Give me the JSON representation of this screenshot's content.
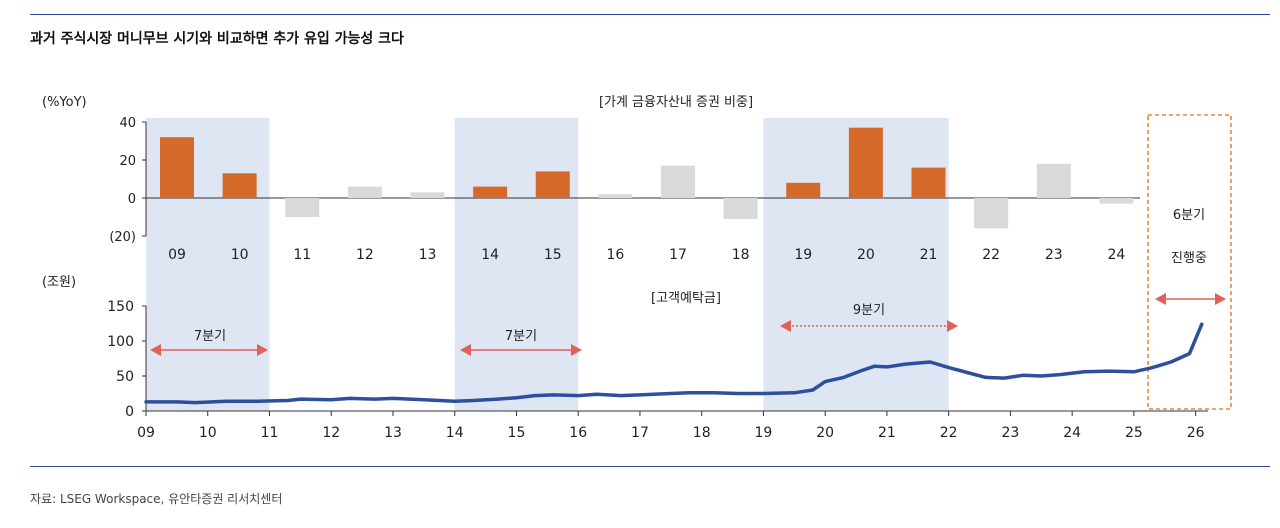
{
  "title": "과거 주식시장 머니무브 시기와 비교하면 추가 유입 가능성 크다",
  "source": "자료: LSEG Workspace, 유안타증권 리서치센터",
  "colors": {
    "rule": "#2d4a9a",
    "highlight_band": "#dfe6f3",
    "bar_highlight": "#d4692a",
    "bar_normal": "#d9d9d9",
    "line": "#2e4f9e",
    "arrow": "#e0605a",
    "dashed_box": "#e8883a"
  },
  "chart_data": [
    {
      "type": "bar",
      "title": "[가계 금융자산내 증권 비중]",
      "unit_label": "(%YoY)",
      "categories": [
        "09",
        "10",
        "11",
        "12",
        "13",
        "14",
        "15",
        "16",
        "17",
        "18",
        "19",
        "20",
        "21",
        "22",
        "23",
        "24"
      ],
      "values": [
        32,
        13,
        -10,
        6,
        3,
        6,
        14,
        2,
        17,
        -11,
        8,
        37,
        16,
        -16,
        18,
        -3
      ],
      "highlighted": [
        "09",
        "10",
        "14",
        "15",
        "19",
        "20",
        "21"
      ],
      "ylim": [
        -20,
        40
      ],
      "yticks": [
        40,
        20,
        0,
        -20
      ],
      "ytick_labels": [
        "40",
        "20",
        "0",
        "(20)"
      ],
      "grid": false
    },
    {
      "type": "line",
      "title": "[고객예탁금]",
      "unit_label": "(조원)",
      "x_labels": [
        "09",
        "10",
        "11",
        "12",
        "13",
        "14",
        "15",
        "16",
        "17",
        "18",
        "19",
        "20",
        "21",
        "22",
        "23",
        "24",
        "25",
        "26"
      ],
      "xlim": [
        2009,
        2026.2
      ],
      "ylim": [
        0,
        150
      ],
      "yticks": [
        0,
        50,
        100,
        150
      ],
      "series": [
        {
          "x": [
            2009.0,
            2009.5,
            2009.8,
            2010.3,
            2010.8,
            2011.3,
            2011.5,
            2012.0,
            2012.3,
            2012.7,
            2013.0,
            2013.5,
            2014.0,
            2014.3,
            2014.7,
            2015.0,
            2015.3,
            2015.6,
            2016.0,
            2016.3,
            2016.7,
            2017.0,
            2017.5,
            2017.8,
            2018.2,
            2018.6,
            2019.0,
            2019.5,
            2019.8,
            2020.0,
            2020.3,
            2020.6,
            2020.8,
            2021.0,
            2021.3,
            2021.7,
            2022.0,
            2022.3,
            2022.6,
            2022.9,
            2023.2,
            2023.5,
            2023.8,
            2024.2,
            2024.6,
            2025.0,
            2025.3,
            2025.6,
            2025.9,
            2026.1
          ],
          "y": [
            13,
            13,
            12,
            14,
            14,
            15,
            17,
            16,
            18,
            17,
            18,
            16,
            14,
            15,
            17,
            19,
            22,
            23,
            22,
            24,
            22,
            23,
            25,
            26,
            26,
            25,
            25,
            26,
            30,
            42,
            48,
            58,
            64,
            63,
            67,
            70,
            62,
            55,
            48,
            47,
            51,
            50,
            52,
            56,
            57,
            56,
            62,
            70,
            82,
            124
          ]
        }
      ],
      "grid": false
    }
  ],
  "annotations": {
    "period1": "7분기",
    "period2": "7분기",
    "period3": "9분기",
    "current_line1": "6분기",
    "current_line2": "진행중"
  }
}
